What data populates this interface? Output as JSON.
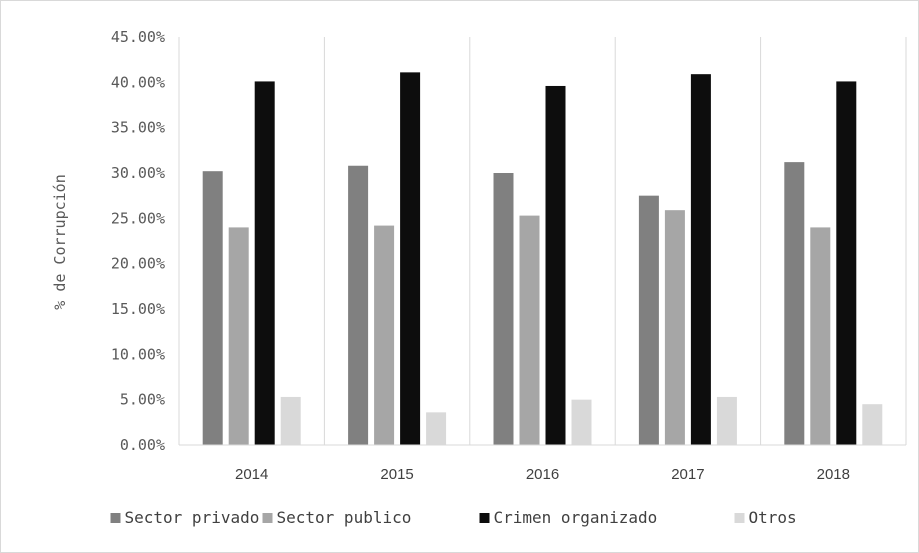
{
  "chart_data": {
    "type": "bar",
    "title": "",
    "xlabel": "",
    "ylabel": "% de Corrupción",
    "categories": [
      "2014",
      "2015",
      "2016",
      "2017",
      "2018"
    ],
    "ylim": [
      0,
      45
    ],
    "ytick_values": [
      0,
      5,
      10,
      15,
      20,
      25,
      30,
      35,
      40,
      45
    ],
    "ytick_labels": [
      "0.00%",
      "5.00%",
      "10.00%",
      "15.00%",
      "20.00%",
      "25.00%",
      "30.00%",
      "35.00%",
      "40.00%",
      "45.00%"
    ],
    "grid": {
      "vertical": true,
      "horizontal": false
    },
    "legend_position": "bottom",
    "series": [
      {
        "name": "Sector privado",
        "color": "#808080",
        "values": [
          30.2,
          30.8,
          30.0,
          27.5,
          31.2
        ]
      },
      {
        "name": "Sector publico",
        "color": "#a6a6a6",
        "values": [
          24.0,
          24.2,
          25.3,
          25.9,
          24.0
        ]
      },
      {
        "name": "Crimen organizado",
        "color": "#0d0d0d",
        "values": [
          40.1,
          41.1,
          39.6,
          40.9,
          40.1
        ]
      },
      {
        "name": "Otros",
        "color": "#d9d9d9",
        "values": [
          5.3,
          3.6,
          5.0,
          5.3,
          4.5
        ]
      }
    ]
  }
}
